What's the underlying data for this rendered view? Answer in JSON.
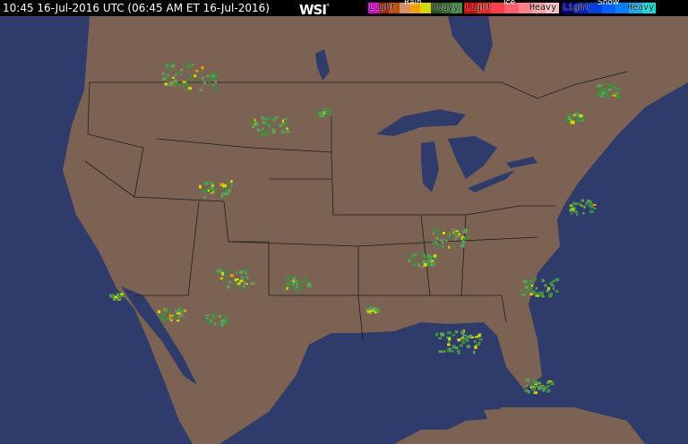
{
  "header": {
    "timestamp": "10:45 16-Jul-2016 UTC  (06:45 AM ET 16-Jul-2016)",
    "logo": "WSI",
    "logo_mark": "°"
  },
  "legend": [
    {
      "title": "Rain",
      "light": "Light",
      "heavy": "Heavy",
      "colors": [
        "#3f8f3f",
        "#2f6f2f",
        "#1f5a1f",
        "#d8d800",
        "#f0a000",
        "#d89060",
        "#c05000",
        "#a02000",
        "#e000e0"
      ]
    },
    {
      "title": "Ice",
      "light": "Light",
      "heavy": "Heavy",
      "colors": [
        "#ffc0c8",
        "#ffa0a8",
        "#ff8088",
        "#ff6068",
        "#ff4048",
        "#ff2020",
        "#e00000"
      ]
    },
    {
      "title": "Snow",
      "light": "Light",
      "heavy": "Heavy",
      "colors": [
        "#00e0e0",
        "#00b0f0",
        "#0080ff",
        "#0060ff",
        "#0040e0",
        "#0020c0",
        "#000090"
      ]
    }
  ],
  "colors": {
    "land": "#7b6252",
    "water": "#2e3b6b",
    "borders": "#1e1e1e"
  }
}
